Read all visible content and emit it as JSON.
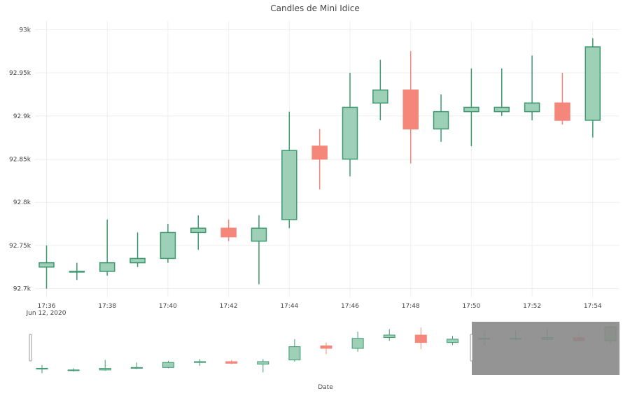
{
  "chart_data": {
    "type": "candlestick",
    "title": "Candles de Mini Idice",
    "xlabel": "Date",
    "ylabel": "",
    "date_label": "Jun 12, 2020",
    "ylim": [
      92690,
      93010
    ],
    "y_ticks": [
      {
        "value": 92700,
        "label": "92.7k"
      },
      {
        "value": 92750,
        "label": "92.75k"
      },
      {
        "value": 92800,
        "label": "92.8k"
      },
      {
        "value": 92850,
        "label": "92.85k"
      },
      {
        "value": 92900,
        "label": "92.9k"
      },
      {
        "value": 92950,
        "label": "92.95k"
      },
      {
        "value": 93000,
        "label": "93k"
      }
    ],
    "x_ticks": [
      "17:36",
      "17:38",
      "17:40",
      "17:42",
      "17:44",
      "17:46",
      "17:48",
      "17:50",
      "17:52",
      "17:54"
    ],
    "candles": [
      {
        "time": "17:36",
        "open": 92725,
        "high": 92750,
        "low": 92700,
        "close": 92730
      },
      {
        "time": "17:37",
        "open": 92720,
        "high": 92730,
        "low": 92710,
        "close": 92720
      },
      {
        "time": "17:38",
        "open": 92720,
        "high": 92780,
        "low": 92715,
        "close": 92730
      },
      {
        "time": "17:39",
        "open": 92730,
        "high": 92765,
        "low": 92725,
        "close": 92735
      },
      {
        "time": "17:40",
        "open": 92735,
        "high": 92775,
        "low": 92730,
        "close": 92765
      },
      {
        "time": "17:41",
        "open": 92765,
        "high": 92785,
        "low": 92745,
        "close": 92770
      },
      {
        "time": "17:42",
        "open": 92770,
        "high": 92780,
        "low": 92755,
        "close": 92760
      },
      {
        "time": "17:43",
        "open": 92755,
        "high": 92785,
        "low": 92705,
        "close": 92770
      },
      {
        "time": "17:44",
        "open": 92780,
        "high": 92905,
        "low": 92770,
        "close": 92860
      },
      {
        "time": "17:45",
        "open": 92865,
        "high": 92885,
        "low": 92815,
        "close": 92850
      },
      {
        "time": "17:46",
        "open": 92850,
        "high": 92950,
        "low": 92830,
        "close": 92910
      },
      {
        "time": "17:47",
        "open": 92915,
        "high": 92965,
        "low": 92895,
        "close": 92930
      },
      {
        "time": "17:48",
        "open": 92930,
        "high": 92975,
        "low": 92845,
        "close": 92885
      },
      {
        "time": "17:49",
        "open": 92885,
        "high": 92925,
        "low": 92870,
        "close": 92905
      },
      {
        "time": "17:50",
        "open": 92905,
        "high": 92955,
        "low": 92865,
        "close": 92910
      },
      {
        "time": "17:51",
        "open": 92905,
        "high": 92955,
        "low": 92900,
        "close": 92910
      },
      {
        "time": "17:52",
        "open": 92905,
        "high": 92970,
        "low": 92895,
        "close": 92915
      },
      {
        "time": "17:53",
        "open": 92915,
        "high": 92950,
        "low": 92890,
        "close": 92895
      },
      {
        "time": "17:54",
        "open": 92895,
        "high": 92990,
        "low": 92875,
        "close": 92980
      }
    ],
    "increasing_color": "#3d9970",
    "increasing_fill": "#9ecfb7",
    "decreasing_color": "#f4877a",
    "grid": true,
    "legend": "none",
    "rangeslider": {
      "visible": true,
      "selected_range": [
        "17:36",
        "17:54"
      ]
    }
  }
}
